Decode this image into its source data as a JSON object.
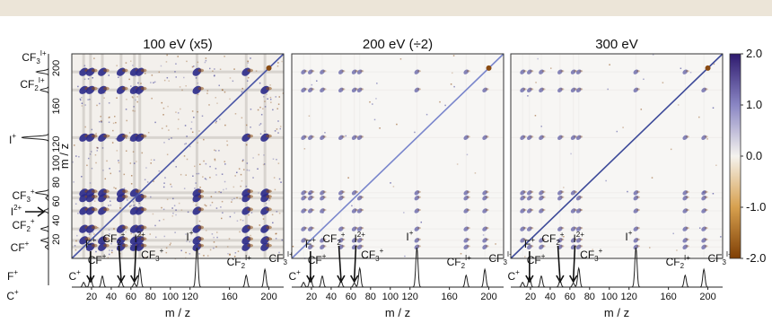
{
  "chart_data": {
    "type": "heatmap",
    "panels": [
      {
        "title": "100 eV (x5)",
        "diagonal_color": "#4a56a6"
      },
      {
        "title": "200 eV (÷2)",
        "diagonal_color": "#7a86cc"
      },
      {
        "title": "300 eV",
        "diagonal_color": "#3d4a99"
      }
    ],
    "axis": {
      "label": "m / z",
      "range": [
        0,
        215
      ],
      "ticks": [
        20,
        40,
        60,
        80,
        100,
        120,
        160,
        200
      ]
    },
    "colorbar": {
      "range": [
        -2.0,
        2.0
      ],
      "ticks": [
        "2.0",
        "1.0",
        "0.0",
        "-1.0",
        "-2.0"
      ],
      "colors": [
        "#2e1a6e",
        "#8a86c4",
        "#f5f3ee",
        "#d7a04e",
        "#7f3f05"
      ]
    },
    "ions": [
      {
        "mz": 12,
        "base": "C",
        "sub": "",
        "sup": "+"
      },
      {
        "mz": 19,
        "base": "F",
        "sub": "",
        "sup": "+"
      },
      {
        "mz": 31,
        "base": "CF",
        "sub": "",
        "sup": "+"
      },
      {
        "mz": 50,
        "base": "CF",
        "sub": "2",
        "sup": "+"
      },
      {
        "mz": 63.5,
        "base": "I",
        "sub": "",
        "sup": "2+"
      },
      {
        "mz": 69,
        "base": "CF",
        "sub": "3",
        "sup": "+"
      },
      {
        "mz": 127,
        "base": "I",
        "sub": "",
        "sup": "+"
      },
      {
        "mz": 177,
        "base": "CF",
        "sub": "2",
        "sup": "I+"
      },
      {
        "mz": 196,
        "base": "CF",
        "sub": "3",
        "sup": "I+"
      }
    ],
    "spectrum": [
      {
        "mz": 12,
        "intensity": 0.12
      },
      {
        "mz": 19,
        "intensity": 0.28
      },
      {
        "mz": 31,
        "intensity": 0.28
      },
      {
        "mz": 50,
        "intensity": 0.16
      },
      {
        "mz": 63.5,
        "intensity": 0.1
      },
      {
        "mz": 69,
        "intensity": 0.48
      },
      {
        "mz": 127,
        "intensity": 1.0
      },
      {
        "mz": 177,
        "intensity": 0.3
      },
      {
        "mz": 196,
        "intensity": 0.45
      }
    ]
  }
}
